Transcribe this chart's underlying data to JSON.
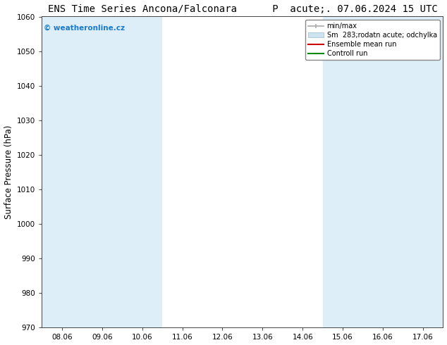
{
  "title": "ENS Time Series Ancona/Falconara      P  acute;. 07.06.2024 15 UTC",
  "ylabel": "Surface Pressure (hPa)",
  "ylim": [
    970,
    1060
  ],
  "yticks": [
    970,
    980,
    990,
    1000,
    1010,
    1020,
    1030,
    1040,
    1050,
    1060
  ],
  "x_labels": [
    "08.06",
    "09.06",
    "10.06",
    "11.06",
    "12.06",
    "13.06",
    "14.06",
    "15.06",
    "16.06",
    "17.06"
  ],
  "x_positions": [
    0,
    1,
    2,
    3,
    4,
    5,
    6,
    7,
    8,
    9
  ],
  "xlim": [
    -0.5,
    9.5
  ],
  "shaded_columns": [
    0,
    1,
    2,
    7,
    8,
    9
  ],
  "shaded_color": "#ddeef8",
  "bg_color": "#ffffff",
  "watermark_text": "© weatheronline.cz",
  "watermark_color": "#1a7acc",
  "legend_minmax_color": "#aaaaaa",
  "legend_sm_color": "#cce4f0",
  "legend_ens_color": "#cc0000",
  "legend_ctrl_color": "#008800",
  "title_fontsize": 10,
  "tick_fontsize": 7.5,
  "ylabel_fontsize": 8.5
}
